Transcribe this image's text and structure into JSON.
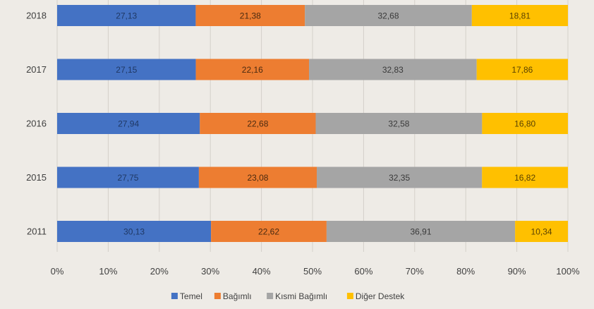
{
  "chart_data": {
    "type": "bar",
    "orientation": "horizontal",
    "stacked": "percent",
    "categories": [
      "2018",
      "2017",
      "2016",
      "2015",
      "2011"
    ],
    "series": [
      {
        "name": "Temel",
        "color": "#4472c4",
        "label_color": "#1f3864",
        "values": [
          27.13,
          27.15,
          27.94,
          27.75,
          30.13
        ],
        "labels": [
          "27,13",
          "27,15",
          "27,94",
          "27,75",
          "30,13"
        ]
      },
      {
        "name": "Bağımlı",
        "color": "#ed7d31",
        "label_color": "#4a2a10",
        "values": [
          21.38,
          22.16,
          22.68,
          23.08,
          22.62
        ],
        "labels": [
          "21,38",
          "22,16",
          "22,68",
          "23,08",
          "22,62"
        ]
      },
      {
        "name": "Kısmi Bağımlı",
        "color": "#a5a5a5",
        "label_color": "#3a3a3a",
        "values": [
          32.68,
          32.83,
          32.58,
          32.35,
          36.91
        ],
        "labels": [
          "32,68",
          "32,83",
          "32,58",
          "32,35",
          "36,91"
        ]
      },
      {
        "name": "Diğer Destek",
        "color": "#ffc000",
        "label_color": "#5a4200",
        "values": [
          18.81,
          17.86,
          16.8,
          16.82,
          10.34
        ],
        "labels": [
          "18,81",
          "17,86",
          "16,80",
          "16,82",
          "10,34"
        ]
      }
    ],
    "x_ticks": [
      "0%",
      "10%",
      "20%",
      "30%",
      "40%",
      "50%",
      "60%",
      "70%",
      "80%",
      "90%",
      "100%"
    ],
    "xlim": [
      0,
      100
    ],
    "grid": "vertical",
    "legend": "bottom",
    "title": "",
    "xlabel": "",
    "ylabel": ""
  }
}
